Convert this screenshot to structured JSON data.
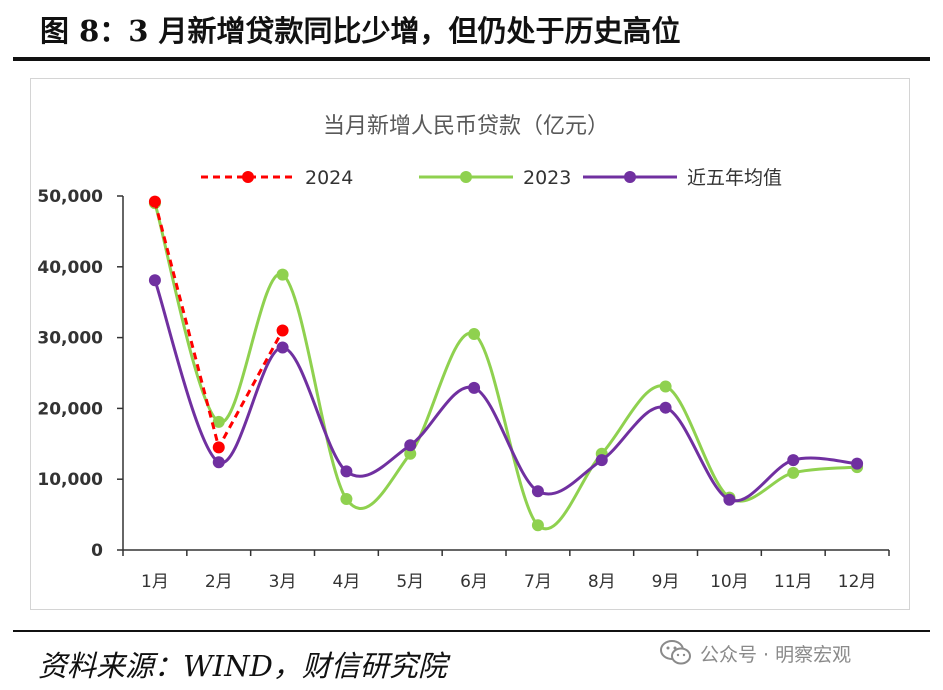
{
  "figure_heading": "图 8：3 月新增贷款同比少增，但仍处于历史高位",
  "source": "资料来源：WIND，财信研究院",
  "watermark": "公众号 · 明察宏观",
  "watermark_icon": "wechat-icon",
  "chart_data": {
    "type": "line",
    "title": "当月新增人民币贷款（亿元）",
    "xlabel": "",
    "ylabel": "",
    "categories": [
      "1月",
      "2月",
      "3月",
      "4月",
      "5月",
      "6月",
      "7月",
      "8月",
      "9月",
      "10月",
      "11月",
      "12月"
    ],
    "ylim": [
      0,
      50000
    ],
    "yticks": [
      0,
      10000,
      20000,
      30000,
      40000,
      50000
    ],
    "ytick_labels": [
      "0",
      "10,000",
      "20,000",
      "30,000",
      "40,000",
      "50,000"
    ],
    "grid": false,
    "legend_position": "top",
    "series": [
      {
        "name": "2024",
        "color": "#ff0000",
        "style": "dashed",
        "smooth": false,
        "values": [
          49200,
          14500,
          31000,
          null,
          null,
          null,
          null,
          null,
          null,
          null,
          null,
          null
        ]
      },
      {
        "name": "2023",
        "color": "#8fd14f",
        "style": "solid",
        "smooth": true,
        "values": [
          49000,
          18100,
          38900,
          7200,
          13600,
          30500,
          3500,
          13600,
          23100,
          7400,
          10900,
          11700
        ]
      },
      {
        "name": "近五年均值",
        "color": "#7030a0",
        "style": "solid",
        "smooth": true,
        "values": [
          38100,
          12400,
          28600,
          11100,
          14800,
          22900,
          8300,
          12700,
          20100,
          7100,
          12700,
          12200
        ]
      }
    ]
  }
}
